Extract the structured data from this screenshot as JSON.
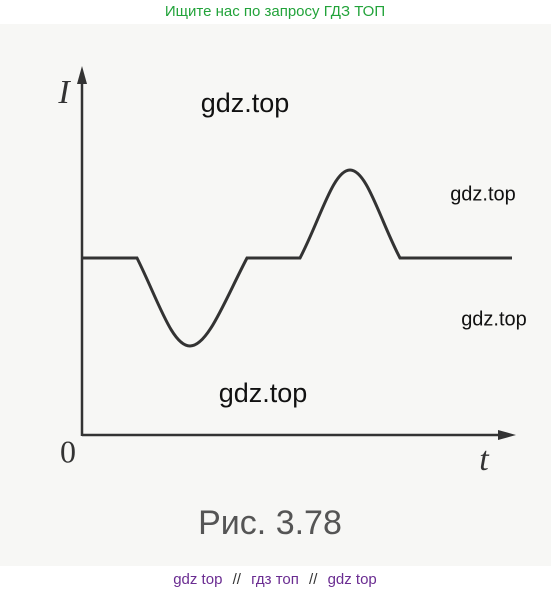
{
  "header": {
    "text": "Ищите нас по запросу ГДЗ ТОП"
  },
  "figure": {
    "y_axis_label": "I",
    "x_axis_label": "t",
    "origin_label": "0",
    "caption": "Рис. 3.78"
  },
  "watermarks": [
    "gdz.top",
    "gdz.top",
    "gdz.top",
    "gdz.top"
  ],
  "footer": [
    "gdz top",
    "//",
    "гдз топ",
    "//",
    "gdz top"
  ]
}
